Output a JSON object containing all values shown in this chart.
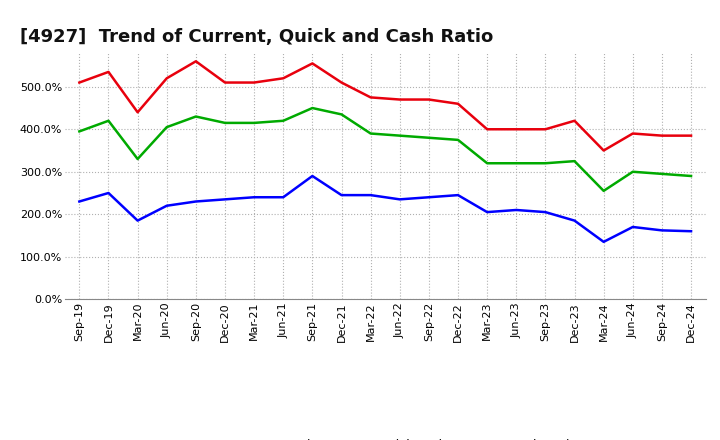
{
  "title": "[4927]  Trend of Current, Quick and Cash Ratio",
  "x_labels": [
    "Sep-19",
    "Dec-19",
    "Mar-20",
    "Jun-20",
    "Sep-20",
    "Dec-20",
    "Mar-21",
    "Jun-21",
    "Sep-21",
    "Dec-21",
    "Mar-22",
    "Jun-22",
    "Sep-22",
    "Dec-22",
    "Mar-23",
    "Jun-23",
    "Sep-23",
    "Dec-23",
    "Mar-24",
    "Jun-24",
    "Sep-24",
    "Dec-24"
  ],
  "current_ratio": [
    510,
    535,
    440,
    520,
    560,
    510,
    510,
    520,
    555,
    510,
    475,
    470,
    470,
    460,
    400,
    400,
    400,
    420,
    350,
    390,
    385,
    385
  ],
  "quick_ratio": [
    395,
    420,
    330,
    405,
    430,
    415,
    415,
    420,
    450,
    435,
    390,
    385,
    380,
    375,
    320,
    320,
    320,
    325,
    255,
    300,
    295,
    290
  ],
  "cash_ratio": [
    230,
    250,
    185,
    220,
    230,
    235,
    240,
    240,
    290,
    245,
    245,
    235,
    240,
    245,
    205,
    210,
    205,
    185,
    135,
    170,
    162,
    160
  ],
  "current_color": "#e8000d",
  "quick_color": "#00aa00",
  "cash_color": "#0000ff",
  "background_color": "#ffffff",
  "grid_color": "#b0b0b0",
  "ylim": [
    0,
    580
  ],
  "yticks": [
    0,
    100,
    200,
    300,
    400,
    500
  ],
  "title_fontsize": 13,
  "axis_fontsize": 8,
  "legend_fontsize": 9,
  "linewidth": 1.8
}
